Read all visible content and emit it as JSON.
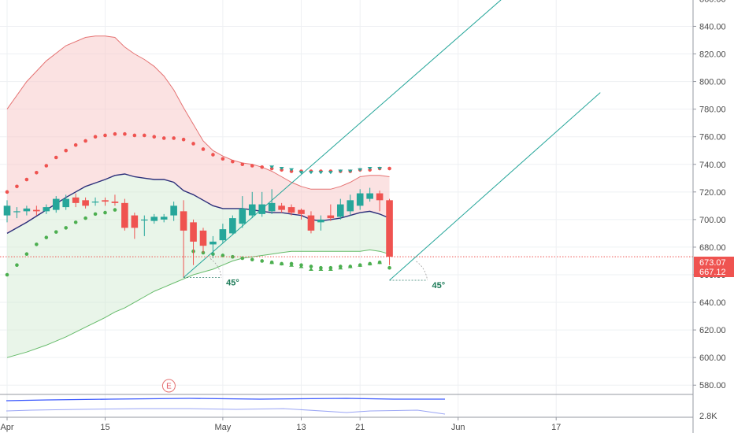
{
  "chart_data": {
    "type": "candlestick",
    "y_axis": {
      "range": [
        575,
        862
      ],
      "ticks": [
        "860.00",
        "840.00",
        "820.00",
        "800.00",
        "780.00",
        "760.00",
        "740.00",
        "720.00",
        "700.00",
        "680.00",
        "660.00",
        "640.00",
        "620.00",
        "600.00",
        "580.00"
      ]
    },
    "x_axis": {
      "range": [
        0,
        60.5
      ],
      "ticks": [
        {
          "label": "Apr",
          "x": 0
        },
        {
          "label": "15",
          "x": 10
        },
        {
          "label": "May",
          "x": 22
        },
        {
          "label": "13",
          "x": 30
        },
        {
          "label": "21",
          "x": 36
        },
        {
          "label": "Jun",
          "x": 46
        },
        {
          "label": "17",
          "x": 56
        }
      ]
    },
    "candles": [
      {
        "x": 0,
        "o": 703,
        "c": 710,
        "h": 714,
        "l": 698
      },
      {
        "x": 1,
        "o": 706,
        "c": 706,
        "h": 709,
        "l": 701
      },
      {
        "x": 2,
        "o": 706,
        "c": 708,
        "h": 710,
        "l": 703
      },
      {
        "x": 3,
        "o": 707,
        "c": 706,
        "h": 710,
        "l": 703
      },
      {
        "x": 4,
        "o": 706,
        "c": 709,
        "h": 711,
        "l": 704
      },
      {
        "x": 5,
        "o": 707,
        "c": 715,
        "h": 717,
        "l": 705
      },
      {
        "x": 6,
        "o": 709,
        "c": 715,
        "h": 718,
        "l": 707
      },
      {
        "x": 7,
        "o": 716,
        "c": 712,
        "h": 719,
        "l": 709
      },
      {
        "x": 8,
        "o": 714,
        "c": 710,
        "h": 716,
        "l": 708
      },
      {
        "x": 9,
        "o": 713,
        "c": 713,
        "h": 716,
        "l": 710
      },
      {
        "x": 10,
        "o": 714,
        "c": 713,
        "h": 716,
        "l": 710
      },
      {
        "x": 11,
        "o": 713,
        "c": 712,
        "h": 718,
        "l": 710
      },
      {
        "x": 12,
        "o": 712,
        "c": 694,
        "h": 715,
        "l": 692
      },
      {
        "x": 13,
        "o": 703,
        "c": 694,
        "h": 705,
        "l": 686
      },
      {
        "x": 14,
        "o": 700,
        "c": 700,
        "h": 703,
        "l": 688
      },
      {
        "x": 15,
        "o": 699,
        "c": 702,
        "h": 704,
        "l": 697
      },
      {
        "x": 16,
        "o": 700,
        "c": 702,
        "h": 704,
        "l": 698
      },
      {
        "x": 17,
        "o": 703,
        "c": 710,
        "h": 713,
        "l": 699
      },
      {
        "x": 18,
        "o": 706,
        "c": 692,
        "h": 714,
        "l": 658
      },
      {
        "x": 19,
        "o": 698,
        "c": 684,
        "h": 700,
        "l": 667
      },
      {
        "x": 20,
        "o": 692,
        "c": 681,
        "h": 694,
        "l": 676
      },
      {
        "x": 21,
        "o": 682,
        "c": 684,
        "h": 688,
        "l": 672
      },
      {
        "x": 22,
        "o": 685,
        "c": 693,
        "h": 697,
        "l": 683
      },
      {
        "x": 23,
        "o": 690,
        "c": 701,
        "h": 703,
        "l": 689
      },
      {
        "x": 24,
        "o": 697,
        "c": 708,
        "h": 717,
        "l": 694
      },
      {
        "x": 25,
        "o": 703,
        "c": 711,
        "h": 720,
        "l": 701
      },
      {
        "x": 26,
        "o": 704,
        "c": 711,
        "h": 720,
        "l": 702
      },
      {
        "x": 27,
        "o": 706,
        "c": 712,
        "h": 722,
        "l": 704
      },
      {
        "x": 28,
        "o": 710,
        "c": 707,
        "h": 712,
        "l": 705
      },
      {
        "x": 29,
        "o": 709,
        "c": 705,
        "h": 711,
        "l": 703
      },
      {
        "x": 30,
        "o": 707,
        "c": 704,
        "h": 708,
        "l": 700
      },
      {
        "x": 31,
        "o": 703,
        "c": 692,
        "h": 706,
        "l": 690
      },
      {
        "x": 32,
        "o": 698,
        "c": 700,
        "h": 703,
        "l": 692
      },
      {
        "x": 33,
        "o": 703,
        "c": 701,
        "h": 711,
        "l": 699
      },
      {
        "x": 34,
        "o": 702,
        "c": 711,
        "h": 715,
        "l": 700
      },
      {
        "x": 35,
        "o": 706,
        "c": 714,
        "h": 718,
        "l": 703
      },
      {
        "x": 36,
        "o": 710,
        "c": 719,
        "h": 722,
        "l": 707
      },
      {
        "x": 37,
        "o": 715,
        "c": 719,
        "h": 723,
        "l": 713
      },
      {
        "x": 38,
        "o": 719,
        "c": 714,
        "h": 721,
        "l": 706
      },
      {
        "x": 39,
        "o": 714,
        "c": 673.07,
        "h": 715,
        "l": 667
      }
    ],
    "moving_average": [
      {
        "x": 0,
        "y": 690
      },
      {
        "x": 2,
        "y": 698
      },
      {
        "x": 4,
        "y": 707
      },
      {
        "x": 6,
        "y": 716
      },
      {
        "x": 8,
        "y": 724
      },
      {
        "x": 10,
        "y": 729
      },
      {
        "x": 11,
        "y": 732
      },
      {
        "x": 12,
        "y": 733
      },
      {
        "x": 13,
        "y": 731
      },
      {
        "x": 14,
        "y": 730
      },
      {
        "x": 15,
        "y": 729
      },
      {
        "x": 16,
        "y": 729
      },
      {
        "x": 17,
        "y": 727
      },
      {
        "x": 18,
        "y": 721
      },
      {
        "x": 19,
        "y": 718
      },
      {
        "x": 20,
        "y": 714
      },
      {
        "x": 21,
        "y": 710
      },
      {
        "x": 22,
        "y": 708
      },
      {
        "x": 23,
        "y": 708
      },
      {
        "x": 24,
        "y": 708
      },
      {
        "x": 25,
        "y": 707
      },
      {
        "x": 26,
        "y": 706
      },
      {
        "x": 27,
        "y": 705
      },
      {
        "x": 28,
        "y": 705
      },
      {
        "x": 29,
        "y": 704
      },
      {
        "x": 30,
        "y": 703
      },
      {
        "x": 31,
        "y": 700
      },
      {
        "x": 32,
        "y": 699
      },
      {
        "x": 33,
        "y": 700
      },
      {
        "x": 34,
        "y": 701
      },
      {
        "x": 35,
        "y": 703
      },
      {
        "x": 36,
        "y": 705
      },
      {
        "x": 37,
        "y": 706
      },
      {
        "x": 38,
        "y": 704
      },
      {
        "x": 39,
        "y": 701
      }
    ],
    "upper_band": [
      {
        "x": 0,
        "y": 780
      },
      {
        "x": 2,
        "y": 800
      },
      {
        "x": 4,
        "y": 815
      },
      {
        "x": 6,
        "y": 826
      },
      {
        "x": 8,
        "y": 832
      },
      {
        "x": 9,
        "y": 833
      },
      {
        "x": 10,
        "y": 833
      },
      {
        "x": 11,
        "y": 832
      },
      {
        "x": 12,
        "y": 825
      },
      {
        "x": 13,
        "y": 820
      },
      {
        "x": 14,
        "y": 816
      },
      {
        "x": 15,
        "y": 811
      },
      {
        "x": 16,
        "y": 804
      },
      {
        "x": 17,
        "y": 794
      },
      {
        "x": 18,
        "y": 781
      },
      {
        "x": 19,
        "y": 769
      },
      {
        "x": 20,
        "y": 757
      },
      {
        "x": 21,
        "y": 750
      },
      {
        "x": 22,
        "y": 746
      },
      {
        "x": 23,
        "y": 743
      },
      {
        "x": 24,
        "y": 741
      },
      {
        "x": 25,
        "y": 740
      },
      {
        "x": 26,
        "y": 738
      },
      {
        "x": 27,
        "y": 735
      },
      {
        "x": 28,
        "y": 731
      },
      {
        "x": 29,
        "y": 727
      },
      {
        "x": 30,
        "y": 724
      },
      {
        "x": 31,
        "y": 722
      },
      {
        "x": 32,
        "y": 722
      },
      {
        "x": 33,
        "y": 722
      },
      {
        "x": 34,
        "y": 724
      },
      {
        "x": 35,
        "y": 727
      },
      {
        "x": 36,
        "y": 731
      },
      {
        "x": 37,
        "y": 732
      },
      {
        "x": 38,
        "y": 732
      },
      {
        "x": 39,
        "y": 731
      }
    ],
    "lower_band": [
      {
        "x": 0,
        "y": 600
      },
      {
        "x": 2,
        "y": 604
      },
      {
        "x": 4,
        "y": 609
      },
      {
        "x": 6,
        "y": 615
      },
      {
        "x": 8,
        "y": 622
      },
      {
        "x": 10,
        "y": 629
      },
      {
        "x": 11,
        "y": 633
      },
      {
        "x": 12,
        "y": 636
      },
      {
        "x": 13,
        "y": 640
      },
      {
        "x": 14,
        "y": 644
      },
      {
        "x": 15,
        "y": 648
      },
      {
        "x": 16,
        "y": 651
      },
      {
        "x": 17,
        "y": 654
      },
      {
        "x": 18,
        "y": 657
      },
      {
        "x": 19,
        "y": 660
      },
      {
        "x": 20,
        "y": 662
      },
      {
        "x": 21,
        "y": 664
      },
      {
        "x": 22,
        "y": 667
      },
      {
        "x": 23,
        "y": 670
      },
      {
        "x": 24,
        "y": 672
      },
      {
        "x": 25,
        "y": 673
      },
      {
        "x": 26,
        "y": 674
      },
      {
        "x": 27,
        "y": 675
      },
      {
        "x": 28,
        "y": 676
      },
      {
        "x": 29,
        "y": 677
      },
      {
        "x": 30,
        "y": 677
      },
      {
        "x": 31,
        "y": 677
      },
      {
        "x": 32,
        "y": 677
      },
      {
        "x": 33,
        "y": 677
      },
      {
        "x": 34,
        "y": 677
      },
      {
        "x": 35,
        "y": 677
      },
      {
        "x": 36,
        "y": 677
      },
      {
        "x": 37,
        "y": 678
      },
      {
        "x": 38,
        "y": 677
      },
      {
        "x": 39,
        "y": 675
      }
    ],
    "sar_upper": [
      {
        "x": 0,
        "y": 720
      },
      {
        "x": 1,
        "y": 724
      },
      {
        "x": 2,
        "y": 729
      },
      {
        "x": 3,
        "y": 734
      },
      {
        "x": 4,
        "y": 739
      },
      {
        "x": 5,
        "y": 745
      },
      {
        "x": 6,
        "y": 750
      },
      {
        "x": 7,
        "y": 754
      },
      {
        "x": 8,
        "y": 757
      },
      {
        "x": 9,
        "y": 760
      },
      {
        "x": 10,
        "y": 761
      },
      {
        "x": 11,
        "y": 762
      },
      {
        "x": 12,
        "y": 762
      },
      {
        "x": 13,
        "y": 761
      },
      {
        "x": 14,
        "y": 761
      },
      {
        "x": 15,
        "y": 760
      },
      {
        "x": 16,
        "y": 759
      },
      {
        "x": 17,
        "y": 759
      },
      {
        "x": 18,
        "y": 758
      },
      {
        "x": 19,
        "y": 755
      },
      {
        "x": 20,
        "y": 751
      },
      {
        "x": 21,
        "y": 747
      },
      {
        "x": 22,
        "y": 744
      },
      {
        "x": 23,
        "y": 742
      },
      {
        "x": 24,
        "y": 740
      },
      {
        "x": 25,
        "y": 739
      },
      {
        "x": 26,
        "y": 738
      },
      {
        "x": 27,
        "y": 737
      },
      {
        "x": 28,
        "y": 736
      },
      {
        "x": 29,
        "y": 735
      },
      {
        "x": 30,
        "y": 735
      },
      {
        "x": 31,
        "y": 735
      },
      {
        "x": 32,
        "y": 735
      },
      {
        "x": 33,
        "y": 735
      },
      {
        "x": 34,
        "y": 735
      },
      {
        "x": 35,
        "y": 735
      },
      {
        "x": 36,
        "y": 736
      },
      {
        "x": 37,
        "y": 736
      },
      {
        "x": 38,
        "y": 737
      },
      {
        "x": 39,
        "y": 737
      }
    ],
    "sar_lower": [
      {
        "x": 0,
        "y": 660
      },
      {
        "x": 1,
        "y": 667
      },
      {
        "x": 2,
        "y": 675
      },
      {
        "x": 3,
        "y": 682
      },
      {
        "x": 4,
        "y": 687
      },
      {
        "x": 5,
        "y": 691
      },
      {
        "x": 6,
        "y": 694
      },
      {
        "x": 7,
        "y": 698
      },
      {
        "x": 8,
        "y": 701
      },
      {
        "x": 9,
        "y": 704
      },
      {
        "x": 10,
        "y": 705
      },
      {
        "x": 11,
        "y": 707
      },
      {
        "x": 19,
        "y": 677
      },
      {
        "x": 20,
        "y": 676
      },
      {
        "x": 21,
        "y": 675
      },
      {
        "x": 22,
        "y": 674
      },
      {
        "x": 23,
        "y": 673
      },
      {
        "x": 24,
        "y": 672
      },
      {
        "x": 25,
        "y": 671
      },
      {
        "x": 26,
        "y": 670
      },
      {
        "x": 27,
        "y": 669
      },
      {
        "x": 28,
        "y": 668
      },
      {
        "x": 29,
        "y": 668
      },
      {
        "x": 30,
        "y": 667
      },
      {
        "x": 31,
        "y": 666
      },
      {
        "x": 32,
        "y": 665
      },
      {
        "x": 33,
        "y": 665
      },
      {
        "x": 34,
        "y": 666
      },
      {
        "x": 35,
        "y": 666
      },
      {
        "x": 36,
        "y": 667
      },
      {
        "x": 37,
        "y": 668
      },
      {
        "x": 38,
        "y": 669
      },
      {
        "x": 39,
        "y": 665
      }
    ],
    "up_arrows": [
      {
        "x": 27,
        "y": 669
      },
      {
        "x": 28,
        "y": 668
      },
      {
        "x": 29,
        "y": 667
      },
      {
        "x": 30,
        "y": 666
      },
      {
        "x": 31,
        "y": 664
      },
      {
        "x": 32,
        "y": 664
      },
      {
        "x": 33,
        "y": 664
      },
      {
        "x": 34,
        "y": 665
      },
      {
        "x": 35,
        "y": 666
      },
      {
        "x": 36,
        "y": 667
      },
      {
        "x": 37,
        "y": 668
      },
      {
        "x": 38,
        "y": 669
      }
    ],
    "down_arrows": [
      {
        "x": 27,
        "y": 738
      },
      {
        "x": 28,
        "y": 737
      },
      {
        "x": 29,
        "y": 736
      },
      {
        "x": 30,
        "y": 734
      },
      {
        "x": 31,
        "y": 734
      },
      {
        "x": 32,
        "y": 734
      },
      {
        "x": 33,
        "y": 734
      },
      {
        "x": 34,
        "y": 735
      },
      {
        "x": 35,
        "y": 735
      },
      {
        "x": 36,
        "y": 736
      },
      {
        "x": 37,
        "y": 737
      },
      {
        "x": 38,
        "y": 737
      }
    ],
    "trend_lines": [
      {
        "x1": 18,
        "y1": 658,
        "x2": 50.5,
        "y2": 860
      },
      {
        "x1": 39,
        "y1": 656,
        "x2": 60.5,
        "y2": 792
      }
    ],
    "angle_markers": [
      {
        "x": 18,
        "y": 658,
        "label": "45°"
      },
      {
        "x": 39,
        "y": 656,
        "label": "45°"
      }
    ],
    "current_price": 673.07,
    "price_labels": [
      {
        "text": "673.07",
        "value": 673.07,
        "color": "#ef5350"
      },
      {
        "text": "667.12",
        "value": 667.12,
        "color": "#ef5350"
      }
    ],
    "earnings_marker": {
      "label": "E",
      "x": 16.5
    },
    "volume_axis_label": "2.8K",
    "colors": {
      "up": "#26a69a",
      "down": "#ef5350",
      "ma": "#2c2f7a",
      "upper_fill": "#f8caca",
      "lower_fill": "#cfe8cf",
      "trend": "#26a69a"
    }
  }
}
